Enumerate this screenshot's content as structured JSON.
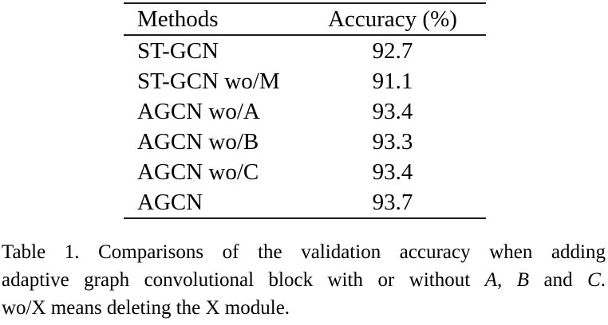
{
  "table": {
    "headers": [
      "Methods",
      "Accuracy (%)"
    ],
    "rows": [
      {
        "method": "ST-GCN",
        "accuracy": "92.7"
      },
      {
        "method": "ST-GCN wo/M",
        "accuracy": "91.1"
      },
      {
        "method": "AGCN wo/A",
        "accuracy": "93.4"
      },
      {
        "method": "AGCN wo/B",
        "accuracy": "93.3"
      },
      {
        "method": "AGCN wo/C",
        "accuracy": "93.4"
      },
      {
        "method": "AGCN",
        "accuracy": "93.7"
      }
    ]
  },
  "caption": {
    "line1": "Table 1. Comparisons of the validation accuracy when adding",
    "line2_parts": {
      "text1": "adaptive graph convolutional block with or without ",
      "varA": "A",
      "sep1": ", ",
      "varB": "B",
      "sep2": " and ",
      "varC": "C",
      "period": "."
    },
    "line3": "wo/X means deleting the X module."
  },
  "colors": {
    "background": "#ffffff",
    "text": "#000000",
    "rule": "#1c1c1c"
  }
}
